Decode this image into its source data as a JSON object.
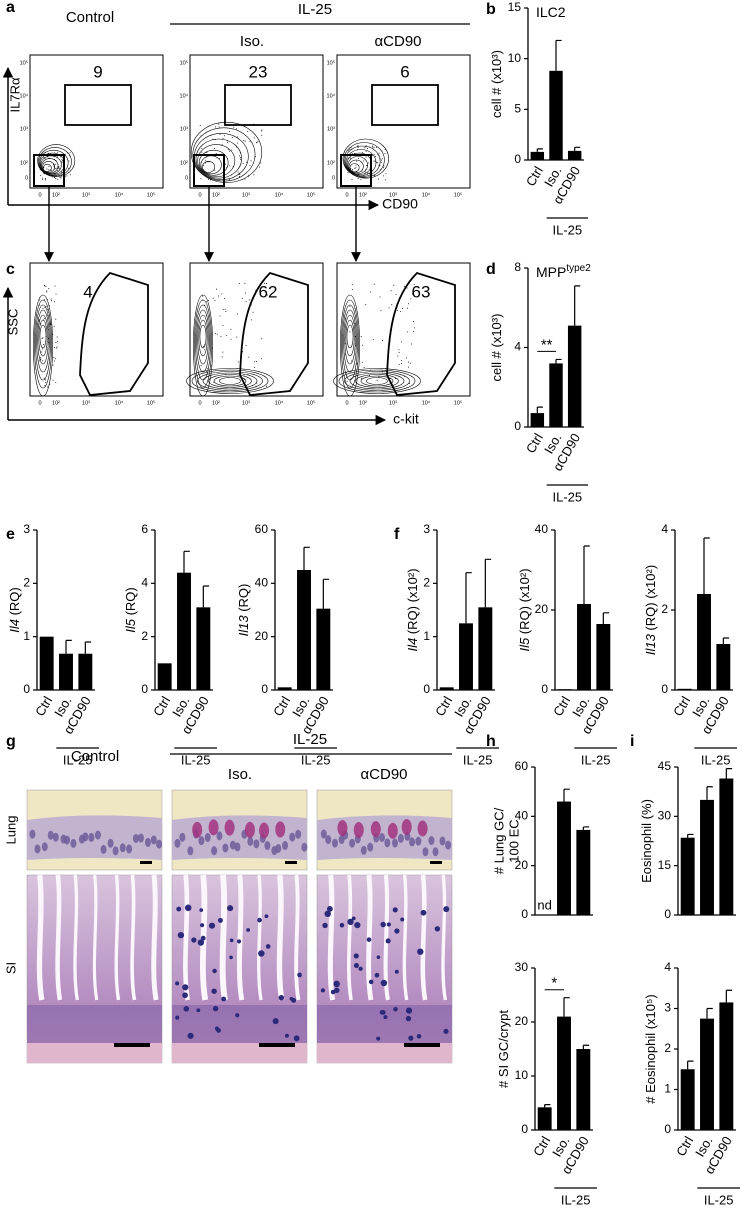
{
  "panel_labels": [
    "a",
    "b",
    "c",
    "d",
    "e",
    "f",
    "g",
    "h",
    "i"
  ],
  "flow": {
    "header": {
      "control": "Control",
      "group": "IL-25",
      "iso": "Iso.",
      "acd90": "αCD90"
    },
    "axis_labels": {
      "a_y": "IL7Rα",
      "a_x": "CD90",
      "c_y": "SSC",
      "c_x": "c-kit"
    },
    "ticks": [
      "0",
      "10²",
      "10³",
      "10⁴",
      "10⁵"
    ],
    "gates_a": [
      9,
      23,
      6
    ],
    "gates_c": [
      4,
      62,
      63
    ]
  },
  "histology": {
    "control": "Control",
    "group": "IL-25",
    "iso": "Iso.",
    "acd90": "αCD90",
    "rows": [
      "Lung",
      "SI"
    ]
  },
  "chart_data": [
    {
      "type": "bar",
      "title": "ILC2",
      "ylabel": "cell # (x10³)",
      "categories": [
        "Ctrl",
        "Iso.",
        "αCD90"
      ],
      "group_label": "IL-25",
      "values": [
        0.8,
        8.8,
        0.9
      ],
      "errors": [
        0.3,
        3.0,
        0.35
      ],
      "ylim": [
        0,
        15
      ],
      "yticks": [
        0,
        5,
        10,
        15
      ],
      "color": "#000000"
    },
    {
      "type": "bar",
      "title": "MPP",
      "title_sup": "type2",
      "ylabel": "cell # (x10³)",
      "categories": [
        "Ctrl",
        "Iso.",
        "αCD90"
      ],
      "group_label": "IL-25",
      "values": [
        0.7,
        3.2,
        5.1
      ],
      "errors": [
        0.3,
        0.2,
        2.0
      ],
      "ylim": [
        0,
        8
      ],
      "yticks": [
        0,
        4,
        8
      ],
      "significance": "**",
      "color": "#000000"
    },
    {
      "type": "bar",
      "ylabel_italic": "Il4",
      "ylabel": "(RQ)",
      "categories": [
        "Ctrl",
        "Iso.",
        "αCD90"
      ],
      "group_label": "IL-25",
      "values": [
        1,
        0.68,
        0.68
      ],
      "errors": [
        null,
        0.25,
        0.22
      ],
      "ylim": [
        0,
        3
      ],
      "yticks": [
        0,
        1,
        2,
        3
      ],
      "color": "#000000"
    },
    {
      "type": "bar",
      "ylabel_italic": "Il5",
      "ylabel": "(RQ)",
      "categories": [
        "Ctrl",
        "Iso.",
        "αCD90"
      ],
      "group_label": "IL-25",
      "values": [
        1,
        4.4,
        3.1
      ],
      "errors": [
        null,
        0.8,
        0.8
      ],
      "ylim": [
        0,
        6
      ],
      "yticks": [
        0,
        2,
        4,
        6
      ],
      "color": "#000000"
    },
    {
      "type": "bar",
      "ylabel_italic": "Il13",
      "ylabel": "(RQ)",
      "categories": [
        "Ctrl",
        "Iso.",
        "αCD90"
      ],
      "group_label": "IL-25",
      "values": [
        1,
        45,
        30.5
      ],
      "errors": [
        null,
        8.5,
        11
      ],
      "ylim": [
        0,
        60
      ],
      "yticks": [
        0,
        20,
        40,
        60
      ],
      "color": "#000000"
    },
    {
      "type": "bar",
      "ylabel_italic": "Il4",
      "ylabel": "(RQ) (x10²)",
      "categories": [
        "Ctrl",
        "Iso.",
        "αCD90"
      ],
      "group_label": "IL-25",
      "values": [
        0.05,
        1.25,
        1.55
      ],
      "errors": [
        null,
        0.95,
        0.9
      ],
      "ylim": [
        0,
        3
      ],
      "yticks": [
        0,
        1,
        2,
        3
      ],
      "color": "#000000"
    },
    {
      "type": "bar",
      "ylabel_italic": "Il5",
      "ylabel": "(RQ) (x10²)",
      "categories": [
        "Ctrl",
        "Iso.",
        "αCD90"
      ],
      "group_label": "IL-25",
      "values": [
        0.2,
        21.5,
        16.5
      ],
      "errors": [
        null,
        14.5,
        2.8
      ],
      "ylim": [
        0,
        40
      ],
      "yticks": [
        0,
        20,
        40
      ],
      "color": "#000000"
    },
    {
      "type": "bar",
      "ylabel_italic": "Il13",
      "ylabel": "(RQ) (x10²)",
      "categories": [
        "Ctrl",
        "Iso.",
        "αCD90"
      ],
      "group_label": "IL-25",
      "values": [
        0.03,
        2.4,
        1.15
      ],
      "errors": [
        null,
        1.4,
        0.15
      ],
      "ylim": [
        0,
        4
      ],
      "yticks": [
        0,
        2,
        4
      ],
      "color": "#000000"
    },
    {
      "type": "bar",
      "ylabel": [
        "# Lung GC/",
        "100 EC"
      ],
      "values": [
        null,
        46,
        34.5
      ],
      "errors": [
        null,
        5,
        1.2
      ],
      "annotation": "nd",
      "ylim": [
        0,
        60
      ],
      "yticks": [
        0,
        20,
        40,
        60
      ],
      "color": "#000000"
    },
    {
      "type": "bar",
      "ylabel": "# SI GC/crypt",
      "categories": [
        "Ctrl",
        "Iso.",
        "αCD90"
      ],
      "group_label": "IL-25",
      "values": [
        4.2,
        21,
        15
      ],
      "errors": [
        0.5,
        3.5,
        0.7
      ],
      "significance": "*",
      "ylim": [
        0,
        30
      ],
      "yticks": [
        0,
        10,
        20,
        30
      ],
      "color": "#000000"
    },
    {
      "type": "bar",
      "ylabel": "Eosinophil (%)",
      "values": [
        23.5,
        35,
        41.5
      ],
      "errors": [
        1,
        4,
        3
      ],
      "ylim": [
        0,
        45
      ],
      "yticks": [
        0,
        15,
        30,
        45
      ],
      "color": "#000000"
    },
    {
      "type": "bar",
      "ylabel": "# Eosinophil (x10⁵)",
      "categories": [
        "Ctrl",
        "Iso.",
        "αCD90"
      ],
      "group_label": "IL-25",
      "values": [
        1.5,
        2.75,
        3.15
      ],
      "errors": [
        0.2,
        0.25,
        0.3
      ],
      "ylim": [
        0,
        4
      ],
      "yticks": [
        0,
        1,
        2,
        3,
        4
      ],
      "color": "#000000"
    }
  ]
}
